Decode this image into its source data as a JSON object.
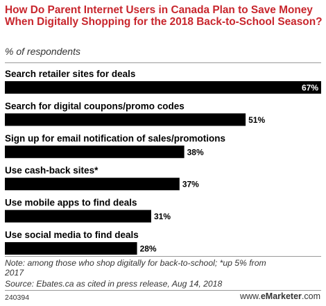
{
  "chart_data": {
    "type": "bar",
    "orientation": "horizontal",
    "title": "How Do Parent Internet Users in Canada Plan to Save Money When Digitally Shopping for the 2018 Back-to-School Season?",
    "subtitle": "% of respondents",
    "categories": [
      "Search retailer sites for deals",
      "Search for digital coupons/promo codes",
      "Sign up for email notification of sales/promotions",
      "Use cash-back sites*",
      "Use mobile apps to find deals",
      "Use social media to find deals"
    ],
    "values": [
      67,
      51,
      38,
      37,
      31,
      28
    ],
    "value_labels": [
      "67%",
      "51%",
      "38%",
      "37%",
      "31%",
      "28%"
    ],
    "xlim": [
      0,
      67
    ],
    "grid": false,
    "legend": "none",
    "bar_color": "#000000"
  },
  "footer": {
    "note_line1": "Note: among those who shop digitally for back-to-school; *up 5% from",
    "note_line2": "2017",
    "source": "Source: Ebates.ca as cited in press release, Aug 14, 2018",
    "chart_id": "240394",
    "brand_prefix": "www.",
    "brand_name": "eMarketer",
    "brand_suffix": ".com"
  }
}
